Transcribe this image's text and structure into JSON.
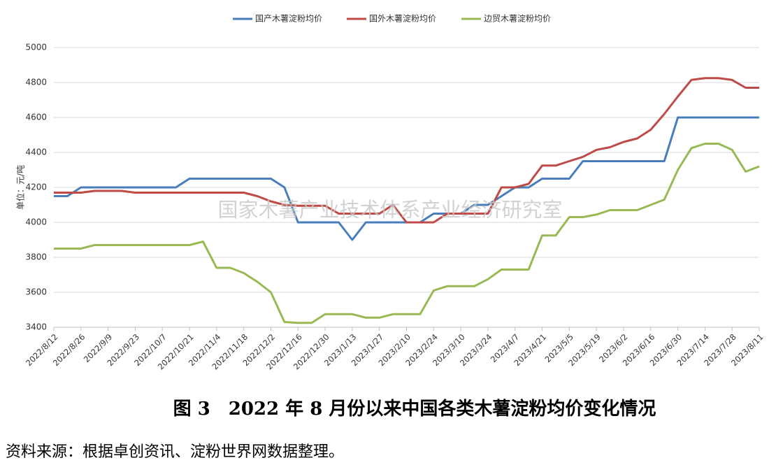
{
  "chart_data": {
    "type": "line",
    "ylabel": "单位：元/吨",
    "watermark": "国家木薯产业技术体系产业经济研究室",
    "caption": "图 3　2022 年 8 月份以来中国各类木薯淀粉均价变化情况",
    "source": "资料来源：根据卓创资讯、淀粉世界网数据整理。",
    "categories": [
      "2022/8/12",
      null,
      "2022/8/26",
      null,
      "2022/9/9",
      null,
      "2022/9/23",
      null,
      "2022/10/7",
      null,
      "2022/10/21",
      null,
      "2022/11/4",
      null,
      "2022/11/18",
      null,
      "2022/12/2",
      null,
      "2022/12/16",
      null,
      "2022/12/30",
      null,
      "2023/1/13",
      null,
      "2023/1/27",
      null,
      "2023/2/10",
      null,
      "2023/2/24",
      null,
      "2023/3/10",
      null,
      "2023/3/24",
      null,
      "2023/4/7",
      null,
      "2023/4/21",
      null,
      "2023/5/5",
      null,
      "2023/5/19",
      null,
      "2023/6/2",
      null,
      "2023/6/16",
      null,
      "2023/6/30",
      null,
      "2023/7/14",
      null,
      "2023/7/28",
      null,
      "2023/8/11"
    ],
    "series": [
      {
        "name": "国产木薯淀粉均价",
        "color": "#4a7ebb",
        "values": [
          4150,
          4150,
          4200,
          4200,
          4200,
          4200,
          4200,
          4200,
          4200,
          4200,
          4250,
          4250,
          4250,
          4250,
          4250,
          4250,
          4250,
          4200,
          4000,
          4000,
          4000,
          4000,
          3900,
          4000,
          4000,
          4000,
          4000,
          4000,
          4050,
          4050,
          4050,
          4100,
          4100,
          4150,
          4200,
          4200,
          4250,
          4250,
          4250,
          4350,
          4350,
          4350,
          4350,
          4350,
          4350,
          4350,
          4600,
          4600,
          4600,
          4600,
          4600,
          4600,
          4600
        ]
      },
      {
        "name": "国外木薯淀粉均价",
        "color": "#be4b48",
        "values": [
          4170,
          4170,
          4170,
          4180,
          4180,
          4180,
          4170,
          4170,
          4170,
          4170,
          4170,
          4170,
          4170,
          4170,
          4170,
          4150,
          4120,
          4100,
          4095,
          4095,
          4095,
          4050,
          4050,
          4050,
          4050,
          4100,
          4000,
          4000,
          4000,
          4050,
          4050,
          4050,
          4050,
          4200,
          4200,
          4220,
          4325,
          4325,
          4350,
          4375,
          4415,
          4430,
          4460,
          4480,
          4530,
          4620,
          4720,
          4815,
          4825,
          4825,
          4815,
          4770,
          4770
        ]
      },
      {
        "name": "边贸木薯淀粉均价",
        "color": "#98b954",
        "values": [
          3850,
          3850,
          3850,
          3870,
          3870,
          3870,
          3870,
          3870,
          3870,
          3870,
          3870,
          3890,
          3740,
          3740,
          3710,
          3660,
          3600,
          3430,
          3425,
          3425,
          3475,
          3475,
          3475,
          3455,
          3455,
          3475,
          3475,
          3475,
          3610,
          3635,
          3635,
          3635,
          3675,
          3730,
          3730,
          3730,
          3925,
          3925,
          4030,
          4030,
          4045,
          4070,
          4070,
          4070,
          4100,
          4130,
          4300,
          4425,
          4450,
          4450,
          4415,
          4290,
          4320
        ]
      }
    ],
    "ylim": [
      3400,
      5000
    ],
    "yticks": [
      3400,
      3600,
      3800,
      4000,
      4200,
      4400,
      4600,
      4800,
      5000
    ],
    "grid": true,
    "legend": "top"
  }
}
